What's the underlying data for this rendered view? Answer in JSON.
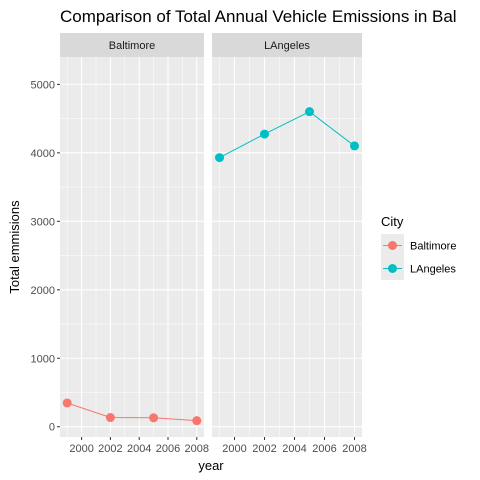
{
  "chart_data": {
    "type": "line",
    "title": "Comparison of Total Annual Vehicle Emissions in Bal",
    "xlabel": "year",
    "ylabel": "Total emmisions",
    "xlim": [
      1998.5,
      2008.5
    ],
    "ylim": [
      -150,
      5400
    ],
    "x_ticks": [
      2000,
      2002,
      2004,
      2006,
      2008
    ],
    "x_tick_labels": [
      "2000",
      "2002",
      "2004",
      "2006",
      "2008"
    ],
    "y_ticks": [
      0,
      1000,
      2000,
      3000,
      4000,
      5000
    ],
    "y_tick_labels": [
      "0",
      "1000",
      "2000",
      "3000",
      "4000",
      "5000"
    ],
    "grid": true,
    "legend": {
      "title": "City",
      "position": "right",
      "entries": [
        "Baltimore",
        "LAngeles"
      ]
    },
    "colors": {
      "Baltimore": "#F8766D",
      "LAngeles": "#00BFC4"
    },
    "facets": [
      {
        "label": "Baltimore",
        "series": [
          {
            "name": "Baltimore",
            "x": [
              1999,
              2002,
              2005,
              2008
            ],
            "y": [
              346.82,
              134.31,
              130.43,
              88.28
            ]
          }
        ]
      },
      {
        "label": "LAngeles",
        "series": [
          {
            "name": "LAngeles",
            "x": [
              1999,
              2002,
              2005,
              2008
            ],
            "y": [
              3931.12,
              4274.03,
              4601.41,
              4101.32
            ]
          }
        ]
      }
    ]
  }
}
